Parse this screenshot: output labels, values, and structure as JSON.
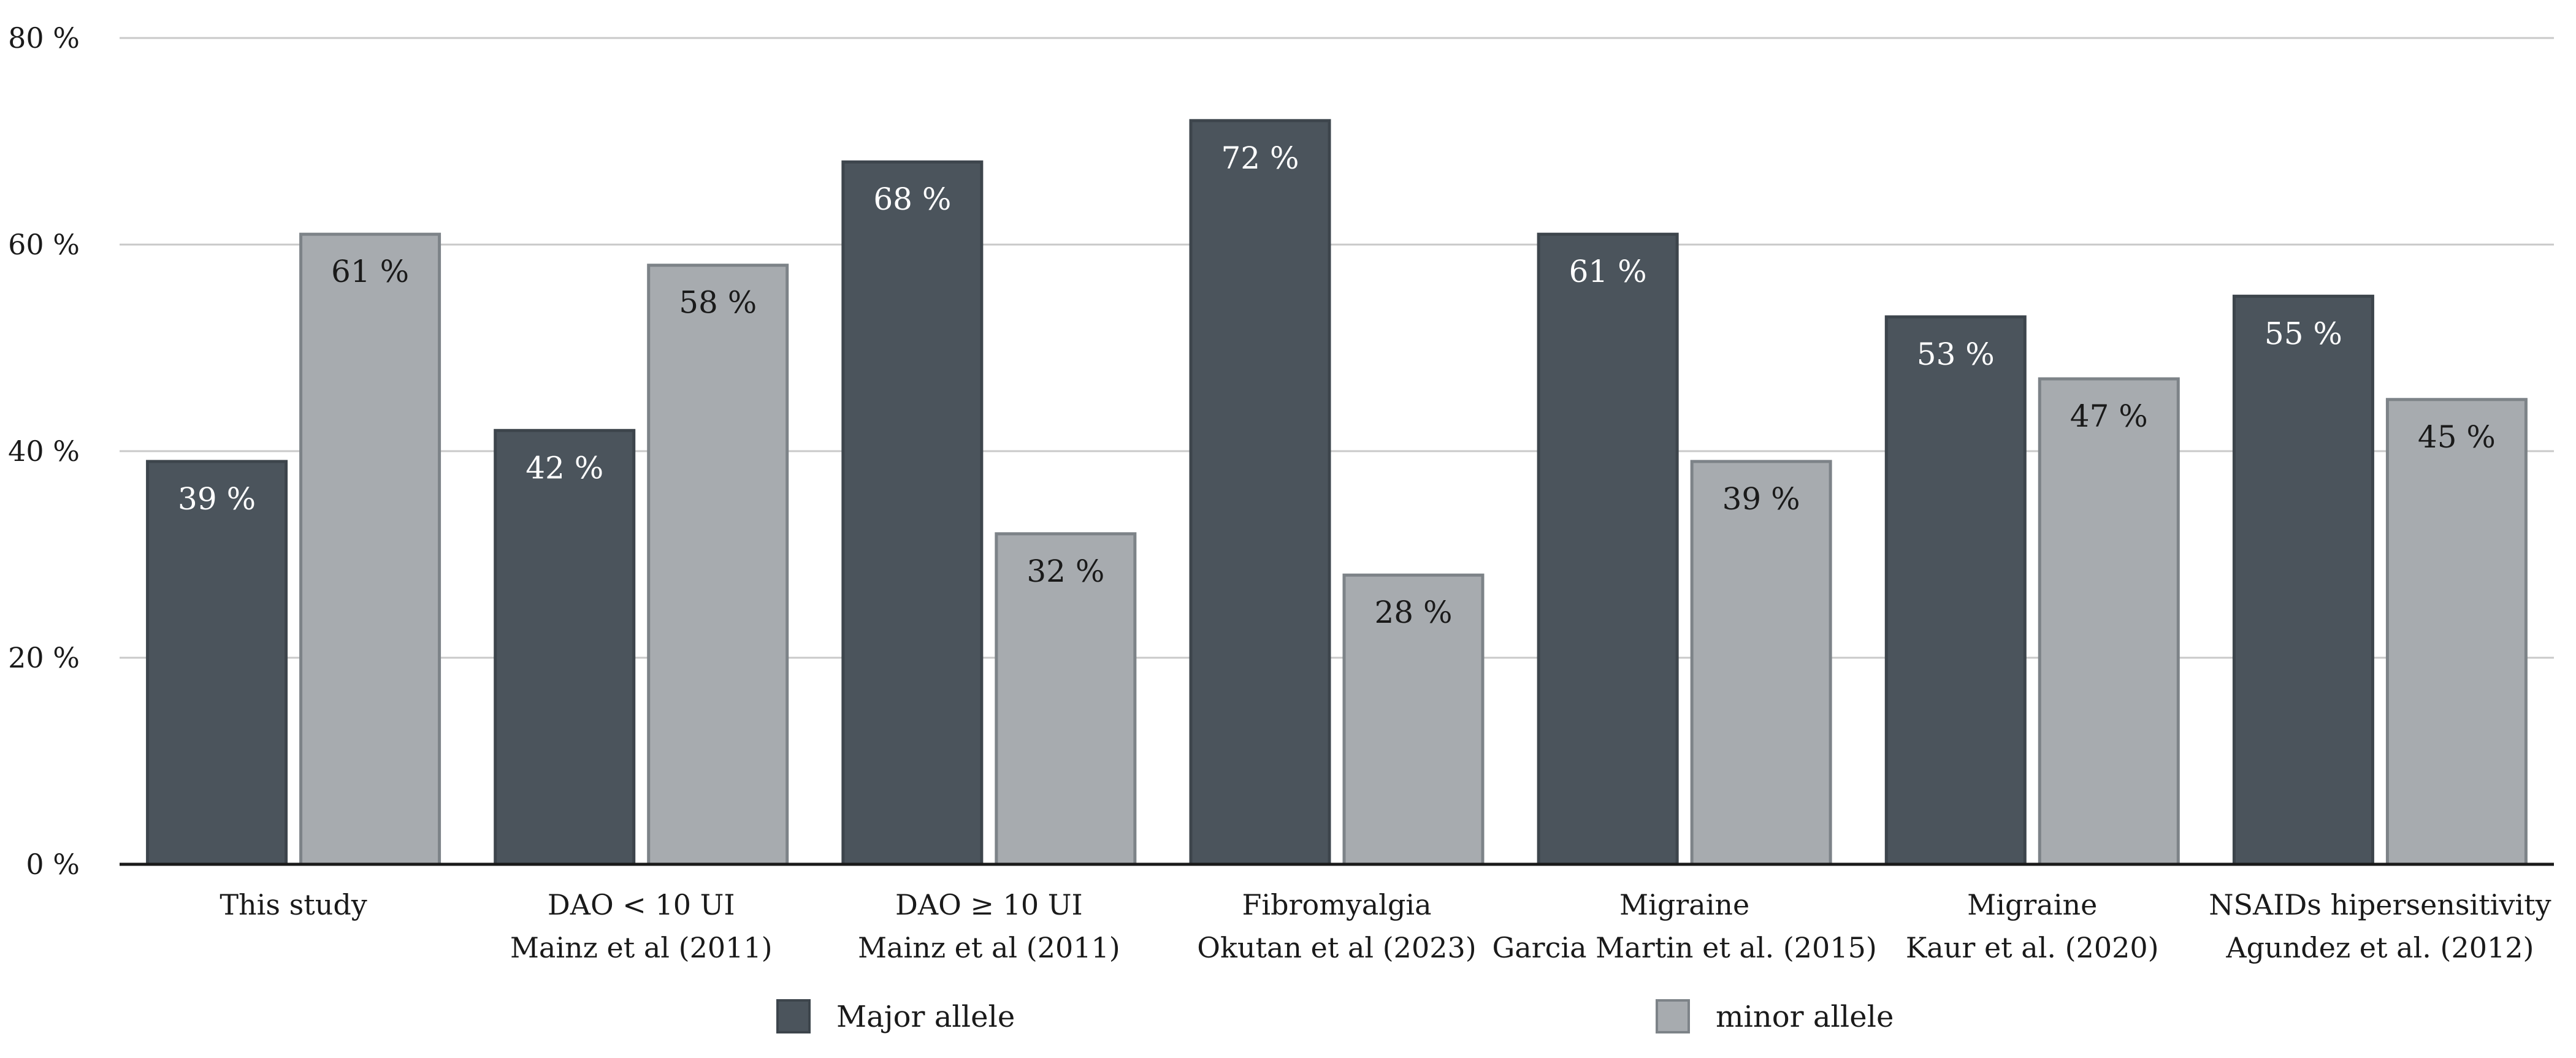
{
  "chart_data": {
    "type": "bar",
    "title": "",
    "xlabel": "",
    "ylabel": "",
    "ylim": [
      0,
      80
    ],
    "yticks": [
      0,
      20,
      40,
      60,
      80
    ],
    "ytick_labels": [
      "0 %",
      "20 %",
      "40 %",
      "60 %",
      "80 %"
    ],
    "grid": true,
    "legend_position": "bottom",
    "categories": [
      [
        "This study"
      ],
      [
        "DAO < 10 UI",
        "Mainz et al (2011)"
      ],
      [
        "DAO ≥ 10 UI",
        "Mainz et al (2011)"
      ],
      [
        "Fibromyalgia",
        "Okutan et al (2023)"
      ],
      [
        "Migraine",
        "Garcia Martin et al. (2015)"
      ],
      [
        "Migraine",
        "Kaur et al. (2020)"
      ],
      [
        "NSAIDs hipersensitivity",
        "Agundez et al. (2012)"
      ]
    ],
    "series": [
      {
        "name": "Major allele",
        "color": "#4b545c",
        "label_color": "#ffffff",
        "values": [
          39,
          42,
          68,
          72,
          61,
          53,
          55
        ],
        "labels": [
          "39 %",
          "42 %",
          "68 %",
          "72 %",
          "61 %",
          "53 %",
          "55 %"
        ]
      },
      {
        "name": "minor allele",
        "color": "#a7abaf",
        "label_color": "#1a1a1a",
        "values": [
          61,
          58,
          32,
          28,
          39,
          47,
          45
        ],
        "labels": [
          "61 %",
          "58 %",
          "32 %",
          "28 %",
          "39 %",
          "47 %",
          "45 %"
        ]
      }
    ]
  }
}
